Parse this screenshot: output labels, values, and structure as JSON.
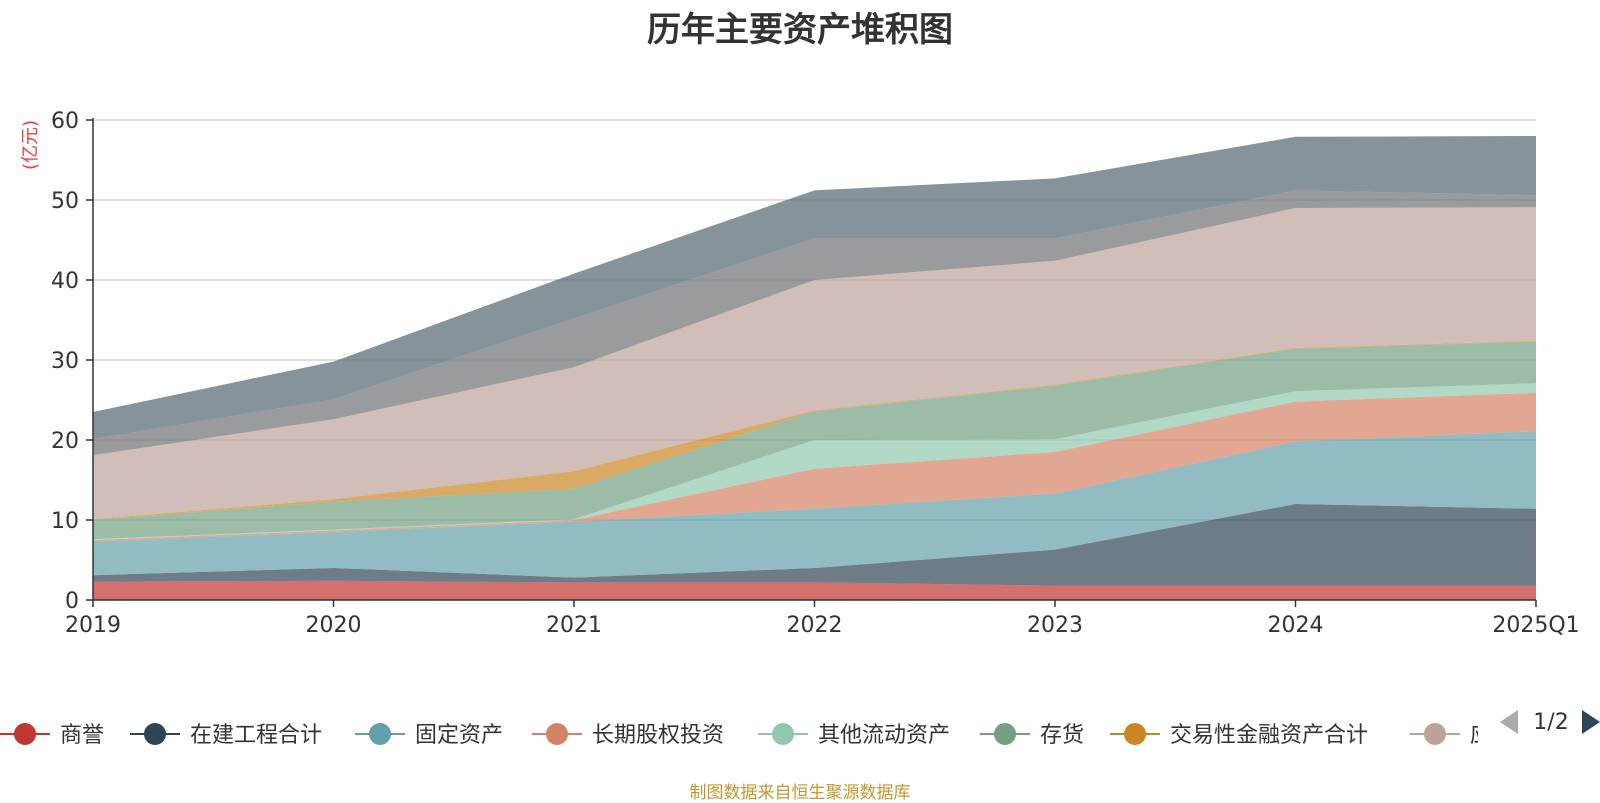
{
  "title": "历年主要资产堆积图",
  "source": "制图数据来自恒生聚源数据库",
  "legend_page": "1/2",
  "chart_data": {
    "type": "area",
    "stacked": true,
    "title": "历年主要资产堆积图",
    "unit_label": "(亿元)",
    "x": [
      "2019",
      "2020",
      "2021",
      "2022",
      "2023",
      "2024",
      "2025Q1"
    ],
    "ylim": [
      0,
      60
    ],
    "yticks": [
      0,
      10,
      20,
      30,
      40,
      50,
      60
    ],
    "grid": true,
    "legend_position": "bottom",
    "series": [
      {
        "name": "商誉",
        "color": "#c23531",
        "values": [
          2.3,
          2.4,
          2.2,
          2.2,
          1.8,
          1.8,
          1.8
        ]
      },
      {
        "name": "在建工程合计",
        "color": "#2f4554",
        "values": [
          0.8,
          1.6,
          0.6,
          1.8,
          4.5,
          10.2,
          9.6
        ]
      },
      {
        "name": "固定资产",
        "color": "#61a0a8",
        "values": [
          4.2,
          4.5,
          7.0,
          7.4,
          7.0,
          7.8,
          9.7
        ]
      },
      {
        "name": "长期股权投资",
        "color": "#d48265",
        "values": [
          0.2,
          0.2,
          0.2,
          5.0,
          5.2,
          5.0,
          4.8
        ]
      },
      {
        "name": "其他流动资产",
        "color": "#91c7ae",
        "values": [
          0.1,
          0.1,
          0.1,
          3.6,
          1.6,
          1.3,
          1.2
        ]
      },
      {
        "name": "存货",
        "color": "#749f83",
        "values": [
          2.4,
          3.5,
          3.8,
          3.6,
          6.7,
          5.3,
          5.2
        ]
      },
      {
        "name": "交易性金融资产合计",
        "color": "#ca8622",
        "values": [
          0.1,
          0.3,
          2.2,
          0.1,
          0.1,
          0.1,
          0.1
        ]
      },
      {
        "name": "应收账款",
        "color": "#bda29a",
        "values": [
          8.0,
          10.0,
          13.0,
          16.3,
          15.5,
          17.5,
          16.7
        ]
      },
      {
        "name": "",
        "color": "#6e7074",
        "values": [
          2.0,
          2.5,
          6.1,
          5.2,
          2.8,
          2.2,
          1.5
        ]
      },
      {
        "name": "",
        "color": "#546570",
        "values": [
          3.4,
          4.7,
          5.6,
          6.0,
          7.5,
          6.7,
          7.4
        ]
      }
    ]
  }
}
